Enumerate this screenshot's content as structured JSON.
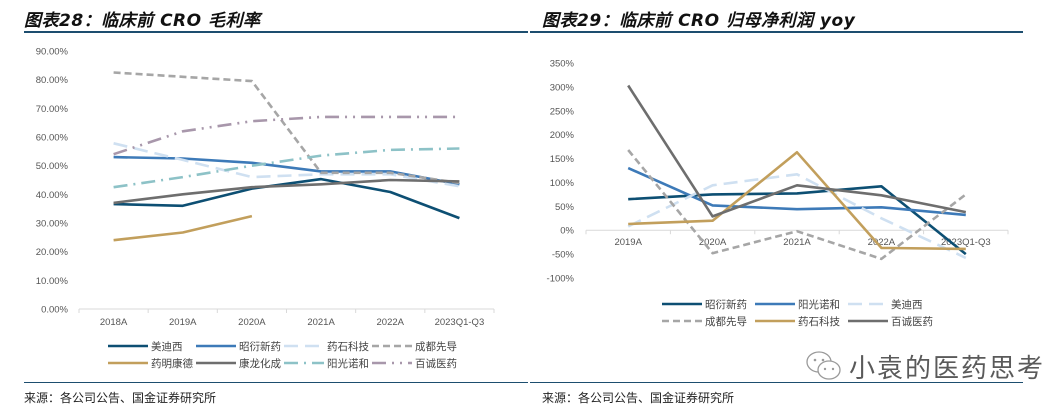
{
  "page": {
    "watermark": {
      "text": "小袁的医药思考",
      "icon": "wechat-icon"
    }
  },
  "chart_data": [
    {
      "type": "line",
      "title": "图表28：临床前 CRO 毛利率",
      "source": "来源：各公司公告、国金证券研究所",
      "xlabel": "",
      "ylabel": "",
      "categories": [
        "2018A",
        "2019A",
        "2020A",
        "2021A",
        "2022A",
        "2023Q1-Q3"
      ],
      "ylim": [
        0,
        90
      ],
      "yticks": [
        0,
        10,
        20,
        30,
        40,
        50,
        60,
        70,
        80,
        90
      ],
      "ytick_labels": [
        "0.00%",
        "10.00%",
        "20.00%",
        "30.00%",
        "40.00%",
        "50.00%",
        "60.00%",
        "70.00%",
        "80.00%",
        "90.00%"
      ],
      "grid": false,
      "legend_position": "bottom",
      "series": [
        {
          "name": "美迪西",
          "color": "#0d4f73",
          "style": "solid",
          "values": [
            36.6,
            36.0,
            42.0,
            45.3,
            40.8,
            31.7
          ]
        },
        {
          "name": "昭衍新药",
          "color": "#3d7ab8",
          "style": "solid",
          "values": [
            53.0,
            52.5,
            51.0,
            48.0,
            48.0,
            43.5
          ]
        },
        {
          "name": "药石科技",
          "color": "#cfe0f1",
          "style": "longdash",
          "values": [
            57.8,
            52.0,
            46.0,
            47.0,
            47.0,
            42.8
          ]
        },
        {
          "name": "成都先导",
          "color": "#a6a6a6",
          "style": "dash",
          "values": [
            82.5,
            81.0,
            79.5,
            47.5,
            47.5,
            44.0
          ]
        },
        {
          "name": "药明康德",
          "color": "#c29f5c",
          "style": "solid",
          "values": [
            24.0,
            26.7,
            32.4,
            null,
            null,
            null
          ]
        },
        {
          "name": "康龙化成",
          "color": "#6e6e6e",
          "style": "solid",
          "values": [
            37.0,
            40.0,
            42.5,
            43.5,
            45.0,
            44.5
          ]
        },
        {
          "name": "阳光诺和",
          "color": "#8dc2c7",
          "style": "dashdot",
          "values": [
            42.5,
            46.0,
            50.0,
            53.5,
            55.5,
            56.0
          ]
        },
        {
          "name": "百诚医药",
          "color": "#a897ab",
          "style": "dashdotdot",
          "values": [
            54.0,
            62.0,
            65.5,
            67.0,
            67.0,
            67.0
          ]
        }
      ]
    },
    {
      "type": "line",
      "title": "图表29：临床前 CRO 归母净利润 yoy",
      "source": "来源：各公司公告、国金证券研究所",
      "xlabel": "",
      "ylabel": "",
      "categories": [
        "2019A",
        "2020A",
        "2021A",
        "2022A",
        "2023Q1-Q3"
      ],
      "ylim": [
        -100,
        350
      ],
      "yticks": [
        -100,
        -50,
        0,
        50,
        100,
        150,
        200,
        250,
        300,
        350
      ],
      "ytick_labels": [
        "-100%",
        "-50%",
        "0%",
        "50%",
        "100%",
        "150%",
        "200%",
        "250%",
        "300%",
        "350%"
      ],
      "grid": false,
      "legend_position": "bottom",
      "series": [
        {
          "name": "昭衍新药",
          "color": "#0d4f73",
          "style": "solid",
          "values": [
            65,
            75,
            77,
            92,
            -50
          ]
        },
        {
          "name": "阳光诺和",
          "color": "#3d7ab8",
          "style": "solid",
          "values": [
            130,
            52,
            44,
            48,
            32
          ]
        },
        {
          "name": "美迪西",
          "color": "#cfe0f1",
          "style": "longdash",
          "values": [
            8,
            94,
            117,
            25,
            -58
          ]
        },
        {
          "name": "成都先导",
          "color": "#a6a6a6",
          "style": "dash",
          "values": [
            168,
            -48,
            -2,
            -60,
            75
          ]
        },
        {
          "name": "药石科技",
          "color": "#c29f5c",
          "style": "solid",
          "values": [
            13,
            20,
            163,
            -37,
            -39
          ]
        },
        {
          "name": "百诚医药",
          "color": "#6e6e6e",
          "style": "solid",
          "values": [
            303,
            29,
            94,
            73,
            38
          ]
        }
      ]
    }
  ]
}
